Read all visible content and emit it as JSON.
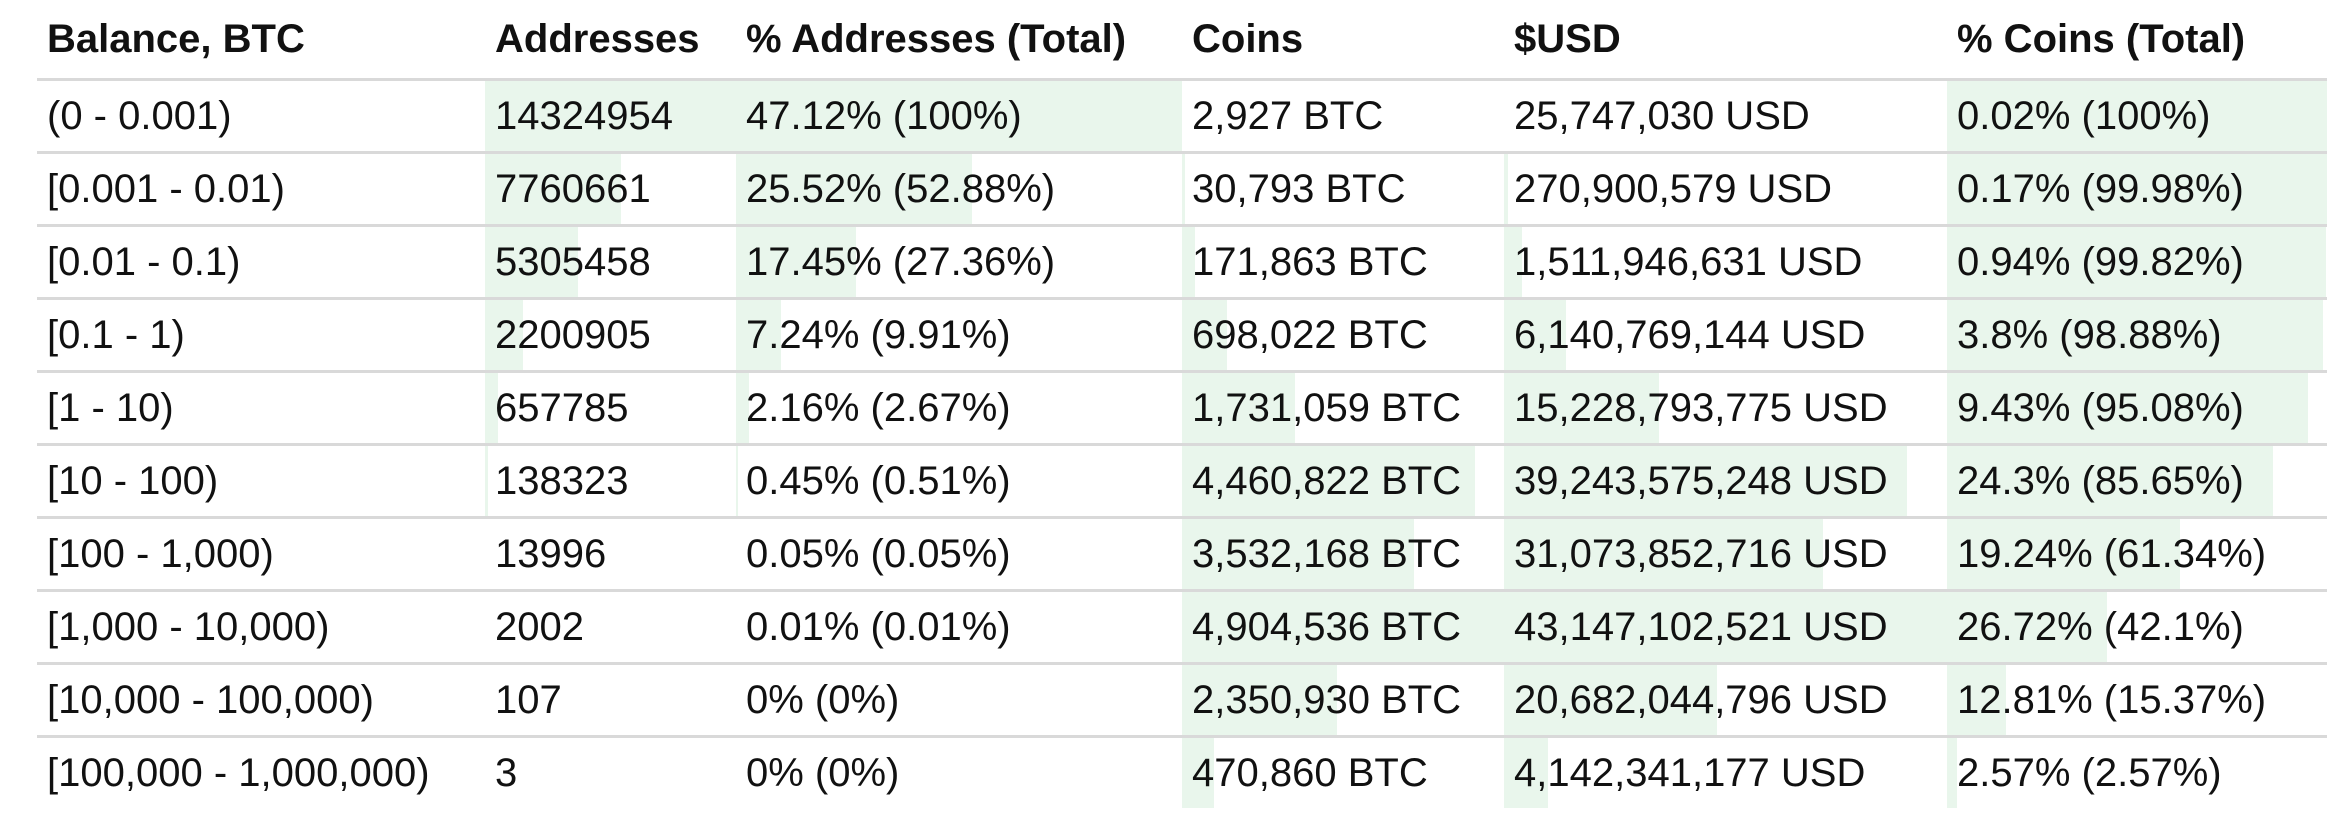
{
  "colors": {
    "bar": "#e9f6ec",
    "grid": "#d9d9d9",
    "text": "#111111"
  },
  "headers": [
    "Balance, BTC",
    "Addresses",
    "% Addresses (Total)",
    "Coins",
    "$USD",
    "% Coins (Total)"
  ],
  "rows": [
    {
      "balance": "(0 - 0.001)",
      "addresses": "14324954",
      "pct_addresses": "47.12% (100%)",
      "coins": "2,927 BTC",
      "usd": "25,747,030 USD",
      "pct_coins": "0.02% (100%)",
      "fill": {
        "addresses": 1.0,
        "pct_addresses": 1.0,
        "coins": 0.0,
        "usd": 0.0,
        "pct_coins": 1.0
      }
    },
    {
      "balance": "[0.001 - 0.01)",
      "addresses": "7760661",
      "pct_addresses": "25.52% (52.88%)",
      "coins": "30,793 BTC",
      "usd": "270,900,579 USD",
      "pct_coins": "0.17% (99.98%)",
      "fill": {
        "addresses": 0.54,
        "pct_addresses": 0.53,
        "coins": 0.01,
        "usd": 0.01,
        "pct_coins": 1.0
      }
    },
    {
      "balance": "[0.01 - 0.1)",
      "addresses": "5305458",
      "pct_addresses": "17.45% (27.36%)",
      "coins": "171,863 BTC",
      "usd": "1,511,946,631 USD",
      "pct_coins": "0.94% (99.82%)",
      "fill": {
        "addresses": 0.37,
        "pct_addresses": 0.27,
        "coins": 0.04,
        "usd": 0.04,
        "pct_coins": 0.998
      }
    },
    {
      "balance": "[0.1 - 1)",
      "addresses": "2200905",
      "pct_addresses": "7.24% (9.91%)",
      "coins": "698,022 BTC",
      "usd": "6,140,769,144 USD",
      "pct_coins": "3.8% (98.88%)",
      "fill": {
        "addresses": 0.15,
        "pct_addresses": 0.1,
        "coins": 0.14,
        "usd": 0.14,
        "pct_coins": 0.99
      }
    },
    {
      "balance": "[1 - 10)",
      "addresses": "657785",
      "pct_addresses": "2.16% (2.67%)",
      "coins": "1,731,059 BTC",
      "usd": "15,228,793,775 USD",
      "pct_coins": "9.43% (95.08%)",
      "fill": {
        "addresses": 0.05,
        "pct_addresses": 0.03,
        "coins": 0.35,
        "usd": 0.35,
        "pct_coins": 0.95
      }
    },
    {
      "balance": "[10 - 100)",
      "addresses": "138323",
      "pct_addresses": "0.45% (0.51%)",
      "coins": "4,460,822 BTC",
      "usd": "39,243,575,248 USD",
      "pct_coins": "24.3% (85.65%)",
      "fill": {
        "addresses": 0.01,
        "pct_addresses": 0.005,
        "coins": 0.91,
        "usd": 0.91,
        "pct_coins": 0.857
      }
    },
    {
      "balance": "[100 - 1,000)",
      "addresses": "13996",
      "pct_addresses": "0.05% (0.05%)",
      "coins": "3,532,168 BTC",
      "usd": "31,073,852,716 USD",
      "pct_coins": "19.24% (61.34%)",
      "fill": {
        "addresses": 0.0,
        "pct_addresses": 0.0,
        "coins": 0.72,
        "usd": 0.72,
        "pct_coins": 0.613
      }
    },
    {
      "balance": "[1,000 - 10,000)",
      "addresses": "2002",
      "pct_addresses": "0.01% (0.01%)",
      "coins": "4,904,536 BTC",
      "usd": "43,147,102,521 USD",
      "pct_coins": "26.72% (42.1%)",
      "fill": {
        "addresses": 0.0,
        "pct_addresses": 0.0,
        "coins": 1.0,
        "usd": 1.0,
        "pct_coins": 0.421
      }
    },
    {
      "balance": "[10,000 - 100,000)",
      "addresses": "107",
      "pct_addresses": "0% (0%)",
      "coins": "2,350,930 BTC",
      "usd": "20,682,044,796 USD",
      "pct_coins": "12.81% (15.37%)",
      "fill": {
        "addresses": 0.0,
        "pct_addresses": 0.0,
        "coins": 0.48,
        "usd": 0.48,
        "pct_coins": 0.154
      }
    },
    {
      "balance": "[100,000 - 1,000,000)",
      "addresses": "3",
      "pct_addresses": "0% (0%)",
      "coins": "470,860 BTC",
      "usd": "4,142,341,177 USD",
      "pct_coins": "2.57% (2.57%)",
      "fill": {
        "addresses": 0.0,
        "pct_addresses": 0.0,
        "coins": 0.1,
        "usd": 0.1,
        "pct_coins": 0.026
      }
    }
  ]
}
